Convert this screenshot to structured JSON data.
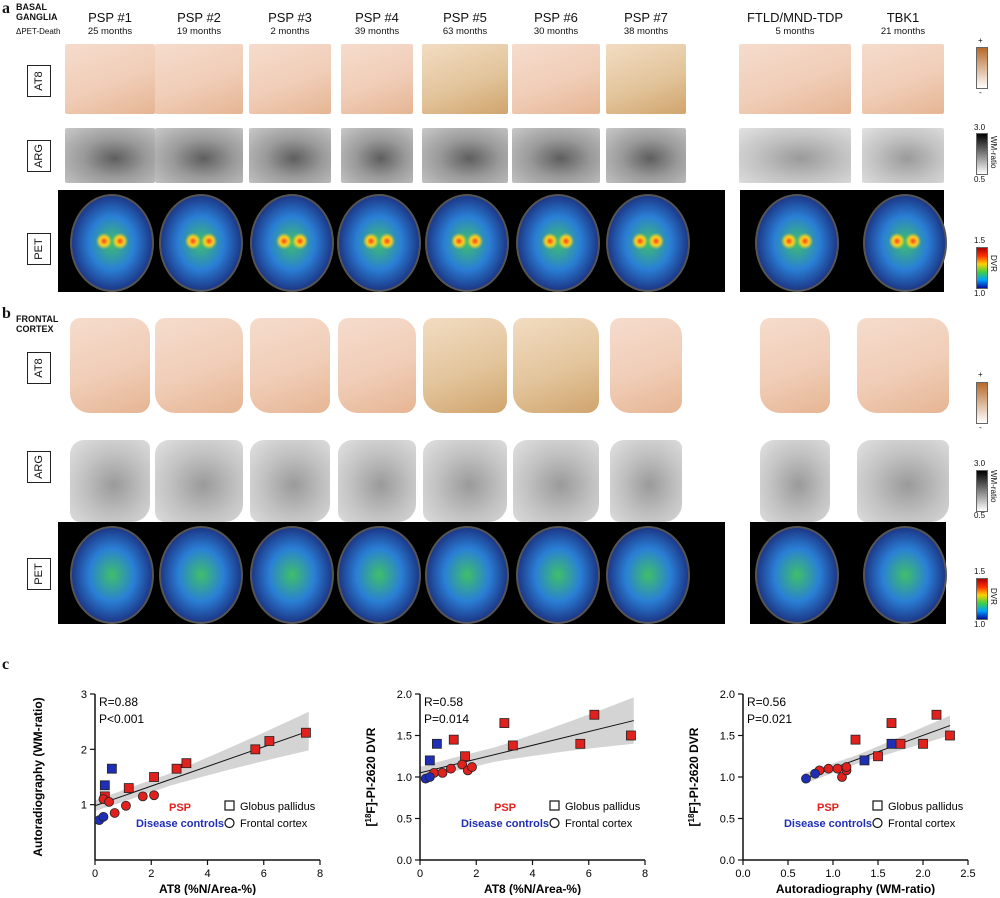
{
  "panel_a": {
    "letter": "a",
    "region_line1": "BASAL",
    "region_line2": "GANGLIA",
    "delta_label": "ΔPET-Death"
  },
  "panel_b": {
    "letter": "b",
    "region_line1": "FRONTAL",
    "region_line2": "CORTEX"
  },
  "panel_c": {
    "letter": "c"
  },
  "columns": [
    {
      "title": "PSP #1",
      "months": "25 months"
    },
    {
      "title": "PSP #2",
      "months": "19 months"
    },
    {
      "title": "PSP #3",
      "months": "2 months"
    },
    {
      "title": "PSP #4",
      "months": "39 months"
    },
    {
      "title": "PSP #5",
      "months": "63 months"
    },
    {
      "title": "PSP #6",
      "months": "30 months"
    },
    {
      "title": "PSP #7",
      "months": "38 months"
    },
    {
      "title": "FTLD/MND-TDP",
      "months": "5 months"
    },
    {
      "title": "TBK1",
      "months": "21 months"
    }
  ],
  "row_labels": {
    "at8": "AT8",
    "arg": "ARG",
    "pet": "PET"
  },
  "scalebars": {
    "at8_top": "+",
    "at8_bottom": "-",
    "wm_top": "3.0",
    "wm_bottom": "0.5",
    "wm_label": "WM-ratio",
    "dvr_top": "1.5",
    "dvr_bottom": "1.0",
    "dvr_label": "DVR"
  },
  "colors": {
    "psp": "#e0211d",
    "controls": "#1f2fb5",
    "band": "#cfcfcf"
  },
  "chart_data": [
    {
      "type": "scatter",
      "xlabel": "AT8 (%N/Area-%)",
      "ylabel": "Autoradiography (WM-ratio)",
      "xlim": [
        0,
        8
      ],
      "ylim": [
        0,
        3
      ],
      "xticks": [
        0,
        2,
        4,
        6,
        8
      ],
      "yticks": [
        1,
        2,
        3
      ],
      "stats": [
        "R=0.88",
        "P<0.001"
      ],
      "fit": {
        "x": [
          0,
          7.6
        ],
        "y": [
          0.98,
          2.33
        ],
        "band_halfwidth_start": 0.12,
        "band_halfwidth_end": 0.35
      },
      "legend": {
        "group1": "PSP",
        "group2": "Disease controls",
        "square": "Globus pallidus",
        "circle": "Frontal cortex"
      },
      "series": [
        {
          "group": "psp",
          "marker": "square",
          "points": [
            [
              0.35,
              1.15
            ],
            [
              1.2,
              1.3
            ],
            [
              2.1,
              1.5
            ],
            [
              2.9,
              1.65
            ],
            [
              3.25,
              1.75
            ],
            [
              5.7,
              2.0
            ],
            [
              6.2,
              2.15
            ],
            [
              7.5,
              2.3
            ]
          ]
        },
        {
          "group": "psp",
          "marker": "circle",
          "points": [
            [
              0.3,
              1.1
            ],
            [
              0.5,
              1.05
            ],
            [
              0.7,
              0.85
            ],
            [
              1.1,
              0.98
            ],
            [
              1.7,
              1.15
            ],
            [
              2.1,
              1.17
            ]
          ]
        },
        {
          "group": "controls",
          "marker": "square",
          "points": [
            [
              0.35,
              1.35
            ],
            [
              0.6,
              1.65
            ]
          ]
        },
        {
          "group": "controls",
          "marker": "circle",
          "points": [
            [
              0.15,
              0.72
            ],
            [
              0.3,
              0.78
            ]
          ]
        }
      ]
    },
    {
      "type": "scatter",
      "xlabel": "AT8 (%N/Area-%)",
      "ylabel": "[18F]-PI-2620 DVR",
      "ylabel_sup": "18",
      "ylabel_pre": "[",
      "ylabel_post": "F]-PI-2620 DVR",
      "xlim": [
        0,
        8
      ],
      "ylim": [
        0,
        2
      ],
      "xticks": [
        0,
        2,
        4,
        6,
        8
      ],
      "yticks": [
        0.0,
        0.5,
        1.0,
        1.5,
        2.0
      ],
      "stats": [
        "R=0.58",
        "P=0.014"
      ],
      "fit": {
        "x": [
          0,
          7.6
        ],
        "y": [
          1.05,
          1.68
        ],
        "band_halfwidth_start": 0.09,
        "band_halfwidth_end": 0.28
      },
      "legend": {
        "group1": "PSP",
        "group2": "Disease controls",
        "square": "Globus pallidus",
        "circle": "Frontal cortex"
      },
      "series": [
        {
          "group": "psp",
          "marker": "square",
          "points": [
            [
              1.2,
              1.45
            ],
            [
              1.6,
              1.25
            ],
            [
              3.0,
              1.65
            ],
            [
              3.3,
              1.38
            ],
            [
              5.7,
              1.4
            ],
            [
              6.2,
              1.75
            ],
            [
              7.5,
              1.5
            ]
          ]
        },
        {
          "group": "psp",
          "marker": "circle",
          "points": [
            [
              0.5,
              1.05
            ],
            [
              0.8,
              1.05
            ],
            [
              1.1,
              1.1
            ],
            [
              1.5,
              1.15
            ],
            [
              1.7,
              1.08
            ],
            [
              1.85,
              1.12
            ]
          ]
        },
        {
          "group": "controls",
          "marker": "square",
          "points": [
            [
              0.35,
              1.2
            ],
            [
              0.6,
              1.4
            ]
          ]
        },
        {
          "group": "controls",
          "marker": "circle",
          "points": [
            [
              0.2,
              0.98
            ],
            [
              0.35,
              1.0
            ]
          ]
        }
      ]
    },
    {
      "type": "scatter",
      "xlabel": "Autoradiography (WM-ratio)",
      "ylabel": "[18F]-PI-2620 DVR",
      "ylabel_sup": "18",
      "ylabel_pre": "[",
      "ylabel_post": "F]-PI-2620 DVR",
      "xlim": [
        0,
        2.5
      ],
      "ylim": [
        0,
        2
      ],
      "xticks": [
        0.0,
        0.5,
        1.0,
        1.5,
        2.0,
        2.5
      ],
      "yticks": [
        0.0,
        0.5,
        1.0,
        1.5,
        2.0
      ],
      "stats": [
        "R=0.56",
        "P=0.021"
      ],
      "fit": {
        "x": [
          0.68,
          2.3
        ],
        "y": [
          0.98,
          1.62
        ],
        "band_halfwidth_start": 0.08,
        "band_halfwidth_end": 0.12
      },
      "legend": {
        "group1": "PSP",
        "group2": "Disease controls",
        "square": "Globus pallidus",
        "circle": "Frontal cortex"
      },
      "series": [
        {
          "group": "psp",
          "marker": "square",
          "points": [
            [
              1.25,
              1.45
            ],
            [
              1.5,
              1.25
            ],
            [
              1.65,
              1.65
            ],
            [
              1.75,
              1.4
            ],
            [
              2.0,
              1.4
            ],
            [
              2.15,
              1.75
            ],
            [
              2.3,
              1.5
            ]
          ]
        },
        {
          "group": "psp",
          "marker": "circle",
          "points": [
            [
              0.85,
              1.08
            ],
            [
              0.95,
              1.1
            ],
            [
              1.05,
              1.1
            ],
            [
              1.1,
              1.0
            ],
            [
              1.15,
              1.08
            ],
            [
              1.15,
              1.12
            ]
          ]
        },
        {
          "group": "controls",
          "marker": "square",
          "points": [
            [
              1.35,
              1.2
            ],
            [
              1.65,
              1.4
            ]
          ]
        },
        {
          "group": "controls",
          "marker": "circle",
          "points": [
            [
              0.7,
              0.98
            ],
            [
              0.8,
              1.04
            ]
          ]
        }
      ]
    }
  ]
}
